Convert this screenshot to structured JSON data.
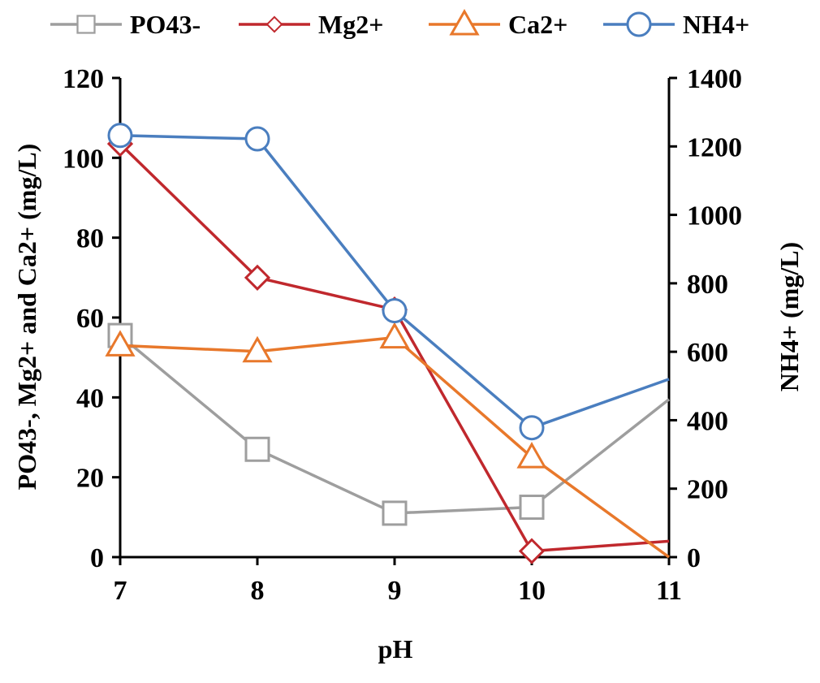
{
  "chart_data": {
    "type": "line",
    "x": [
      7,
      8,
      9,
      10,
      11
    ],
    "xlabel": "pH",
    "ylabel_left": "PO43-, Mg2+ and Ca2+ (mg/L)",
    "ylabel_right": "NH4+ (mg/L)",
    "xlim": [
      7,
      11
    ],
    "ylim_left": [
      0,
      120
    ],
    "ylim_right": [
      0,
      1400
    ],
    "xticks": [
      "7",
      "8",
      "9",
      "10",
      "11"
    ],
    "yticks_left": [
      "0",
      "20",
      "40",
      "60",
      "80",
      "100",
      "120"
    ],
    "yticks_right": [
      "0",
      "200",
      "400",
      "600",
      "800",
      "1000",
      "1200",
      "1400"
    ],
    "legend_position": "top",
    "grid": false,
    "series": [
      {
        "name": "PO43-",
        "axis": "left",
        "marker": "square",
        "color": "#9e9e9e",
        "values": [
          55.5,
          27,
          11,
          12.5,
          39.5
        ],
        "marker_at": [
          true,
          true,
          true,
          true,
          false
        ]
      },
      {
        "name": "Mg2+",
        "axis": "left",
        "marker": "diamond",
        "color": "#c0282d",
        "values": [
          103.5,
          70,
          62,
          1.5,
          4
        ],
        "marker_at": [
          true,
          true,
          true,
          true,
          false
        ]
      },
      {
        "name": "Ca2+",
        "axis": "left",
        "marker": "triangle",
        "color": "#e8782b",
        "values": [
          53,
          51.5,
          55,
          25,
          0
        ],
        "marker_at": [
          true,
          true,
          true,
          true,
          false
        ]
      },
      {
        "name": "NH4+",
        "axis": "right",
        "marker": "circle",
        "color": "#4a7ebf",
        "values": [
          1232,
          1222,
          720,
          378,
          520
        ],
        "marker_at": [
          true,
          true,
          true,
          true,
          false
        ]
      }
    ]
  }
}
